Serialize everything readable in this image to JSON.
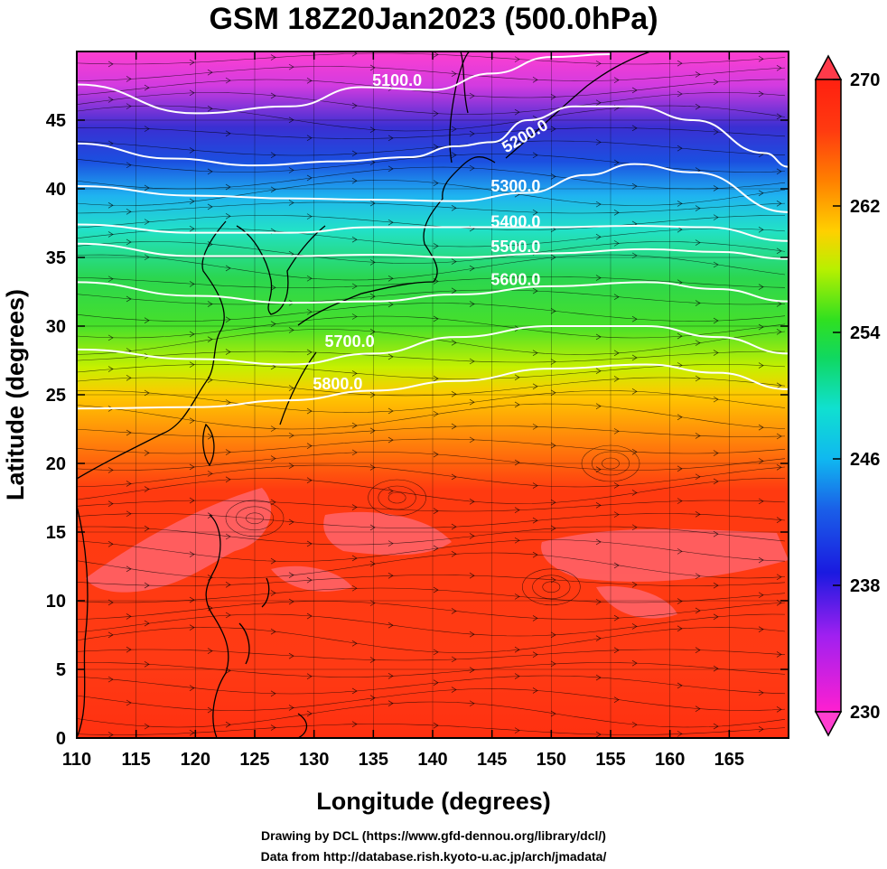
{
  "title": "GSM 18Z20Jan2023 (500.0hPa)",
  "chart_data": {
    "type": "heatmap",
    "title": "GSM 18Z20Jan2023 (500.0hPa)",
    "xlabel": "Longitude (degrees)",
    "ylabel": "Latitude  (degrees)",
    "xlim": [
      110,
      170
    ],
    "ylim": [
      0,
      50
    ],
    "x_ticks": [
      "110",
      "115",
      "120",
      "125",
      "130",
      "135",
      "140",
      "145",
      "150",
      "155",
      "160",
      "165"
    ],
    "y_ticks": [
      "0",
      "5",
      "10",
      "15",
      "20",
      "25",
      "30",
      "35",
      "40",
      "45"
    ],
    "fill_variable_range": [
      230,
      270
    ],
    "colorbar_ticks": [
      "230",
      "238",
      "246",
      "254",
      "262",
      "270"
    ],
    "colorbar_placement": "right",
    "contour_labels": [
      {
        "text": "5100.0",
        "lon": 137,
        "lat": 47.5
      },
      {
        "text": "5200.0",
        "lon": 148,
        "lat": 43.5
      },
      {
        "text": "5300.0",
        "lon": 147,
        "lat": 39.8
      },
      {
        "text": "5400.0",
        "lon": 147,
        "lat": 37.2
      },
      {
        "text": "5500.0",
        "lon": 147,
        "lat": 35.4
      },
      {
        "text": "5600.0",
        "lon": 147,
        "lat": 33.0
      },
      {
        "text": "5700.0",
        "lon": 133,
        "lat": 28.5
      },
      {
        "text": "5800.0",
        "lon": 132,
        "lat": 25.4
      }
    ],
    "contours": [
      {
        "label": "5100.0",
        "points": [
          [
            110,
            47.6
          ],
          [
            120,
            45.5
          ],
          [
            128,
            46.0
          ],
          [
            134,
            47.4
          ],
          [
            140,
            47.2
          ],
          [
            145,
            48.4
          ],
          [
            150,
            49.6
          ],
          [
            155,
            49.8
          ]
        ]
      },
      {
        "label": "5200.0",
        "points": [
          [
            110,
            43.3
          ],
          [
            118,
            42.2
          ],
          [
            125,
            41.7
          ],
          [
            132,
            42.0
          ],
          [
            138,
            42.3
          ],
          [
            142,
            43.1
          ],
          [
            145,
            43.4
          ],
          [
            148,
            45.0
          ],
          [
            152,
            46.0
          ],
          [
            157,
            46.0
          ],
          [
            162,
            45.0
          ],
          [
            168,
            42.6
          ],
          [
            170,
            41.6
          ]
        ]
      },
      {
        "label": "5300.0",
        "points": [
          [
            110,
            40.2
          ],
          [
            120,
            39.5
          ],
          [
            128,
            39.3
          ],
          [
            135,
            39.2
          ],
          [
            142,
            39.1
          ],
          [
            148,
            39.7
          ],
          [
            153,
            41.0
          ],
          [
            157,
            41.8
          ],
          [
            162,
            41.2
          ],
          [
            170,
            38.3
          ]
        ]
      },
      {
        "label": "5400.0",
        "points": [
          [
            110,
            37.4
          ],
          [
            120,
            36.8
          ],
          [
            128,
            36.8
          ],
          [
            135,
            37.2
          ],
          [
            142,
            37.2
          ],
          [
            150,
            37.2
          ],
          [
            157,
            37.3
          ],
          [
            163,
            37.2
          ],
          [
            170,
            36.2
          ]
        ]
      },
      {
        "label": "5500.0",
        "points": [
          [
            110,
            36.0
          ],
          [
            120,
            35.1
          ],
          [
            128,
            35.1
          ],
          [
            135,
            35.2
          ],
          [
            142,
            35.0
          ],
          [
            150,
            35.3
          ],
          [
            158,
            35.6
          ],
          [
            164,
            35.4
          ],
          [
            170,
            34.9
          ]
        ]
      },
      {
        "label": "5600.0",
        "points": [
          [
            110,
            33.2
          ],
          [
            120,
            32.2
          ],
          [
            128,
            31.7
          ],
          [
            135,
            31.8
          ],
          [
            142,
            32.3
          ],
          [
            150,
            32.9
          ],
          [
            158,
            33.2
          ],
          [
            164,
            32.7
          ],
          [
            170,
            31.8
          ]
        ]
      },
      {
        "label": "5700.0",
        "points": [
          [
            110,
            28.3
          ],
          [
            120,
            27.6
          ],
          [
            128,
            27.2
          ],
          [
            135,
            28.0
          ],
          [
            142,
            29.2
          ],
          [
            150,
            30.0
          ],
          [
            158,
            30.0
          ],
          [
            164,
            29.2
          ],
          [
            170,
            28.0
          ]
        ]
      },
      {
        "label": "5800.0",
        "points": [
          [
            110,
            24.0
          ],
          [
            120,
            24.1
          ],
          [
            128,
            24.6
          ],
          [
            135,
            25.3
          ],
          [
            142,
            26.0
          ],
          [
            150,
            26.9
          ],
          [
            158,
            27.2
          ],
          [
            164,
            26.6
          ],
          [
            170,
            25.4
          ]
        ]
      }
    ]
  },
  "credits": {
    "line1": "Drawing by DCL (https://www.gfd-dennou.org/library/dcl/)",
    "line2": "Data from http://database.rish.kyoto-u.ac.jp/arch/jmadata/"
  }
}
